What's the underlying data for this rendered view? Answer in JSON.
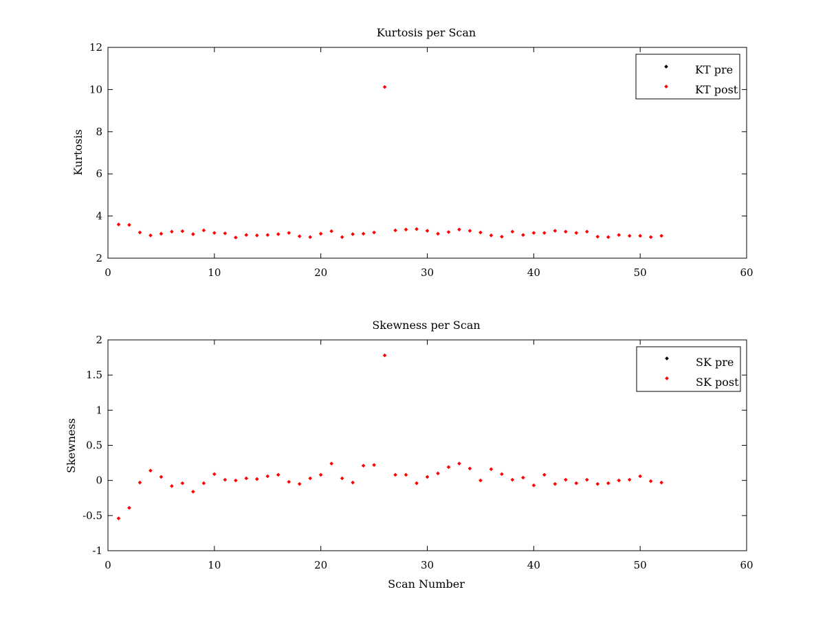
{
  "chart_data": [
    {
      "type": "scatter",
      "title": "Kurtosis per Scan",
      "xlabel": "",
      "ylabel": "Kurtosis",
      "xlim": [
        0,
        60
      ],
      "ylim": [
        2,
        12
      ],
      "xticks": [
        "0",
        "10",
        "20",
        "30",
        "40",
        "50",
        "60"
      ],
      "yticks": [
        "2",
        "4",
        "6",
        "8",
        "10",
        "12"
      ],
      "grid": false,
      "legend_position": "top-right",
      "series": [
        {
          "name": "KT pre",
          "color": "#000000",
          "x": [],
          "y": []
        },
        {
          "name": "KT post",
          "color": "#ff0000",
          "x": [
            1,
            2,
            3,
            4,
            5,
            6,
            7,
            8,
            9,
            10,
            11,
            12,
            13,
            14,
            15,
            16,
            17,
            18,
            19,
            20,
            21,
            22,
            23,
            24,
            25,
            26,
            27,
            28,
            29,
            30,
            31,
            32,
            33,
            34,
            35,
            36,
            37,
            38,
            39,
            40,
            41,
            42,
            43,
            44,
            45,
            46,
            47,
            48,
            49,
            50,
            51,
            52
          ],
          "y": [
            3.6,
            3.58,
            3.22,
            3.08,
            3.16,
            3.26,
            3.28,
            3.14,
            3.32,
            3.2,
            3.18,
            2.98,
            3.1,
            3.08,
            3.1,
            3.14,
            3.2,
            3.04,
            3.0,
            3.16,
            3.28,
            3.0,
            3.14,
            3.16,
            3.22,
            10.12,
            3.32,
            3.36,
            3.38,
            3.3,
            3.16,
            3.24,
            3.36,
            3.3,
            3.22,
            3.08,
            3.02,
            3.26,
            3.1,
            3.2,
            3.2,
            3.3,
            3.26,
            3.2,
            3.26,
            3.02,
            3.0,
            3.1,
            3.06,
            3.06,
            3.0,
            3.06
          ]
        }
      ]
    },
    {
      "type": "scatter",
      "title": "Skewness per Scan",
      "xlabel": "Scan Number",
      "ylabel": "Skewness",
      "xlim": [
        0,
        60
      ],
      "ylim": [
        -1,
        2
      ],
      "xticks": [
        "0",
        "10",
        "20",
        "30",
        "40",
        "50",
        "60"
      ],
      "yticks": [
        "-1",
        "-0.5",
        "0",
        "0.5",
        "1",
        "1.5",
        "2"
      ],
      "grid": false,
      "legend_position": "top-right",
      "series": [
        {
          "name": "SK pre",
          "color": "#000000",
          "x": [],
          "y": []
        },
        {
          "name": "SK post",
          "color": "#ff0000",
          "x": [
            1,
            2,
            3,
            4,
            5,
            6,
            7,
            8,
            9,
            10,
            11,
            12,
            13,
            14,
            15,
            16,
            17,
            18,
            19,
            20,
            21,
            22,
            23,
            24,
            25,
            26,
            27,
            28,
            29,
            30,
            31,
            32,
            33,
            34,
            35,
            36,
            37,
            38,
            39,
            40,
            41,
            42,
            43,
            44,
            45,
            46,
            47,
            48,
            49,
            50,
            51,
            52
          ],
          "y": [
            -0.54,
            -0.39,
            -0.03,
            0.14,
            0.05,
            -0.08,
            -0.04,
            -0.16,
            -0.04,
            0.09,
            0.01,
            0.0,
            0.03,
            0.02,
            0.06,
            0.08,
            -0.02,
            -0.05,
            0.03,
            0.08,
            0.24,
            0.03,
            -0.03,
            0.21,
            0.22,
            1.78,
            0.08,
            0.08,
            -0.04,
            0.05,
            0.1,
            0.19,
            0.24,
            0.17,
            0.0,
            0.16,
            0.09,
            0.01,
            0.04,
            -0.07,
            0.08,
            -0.05,
            0.01,
            -0.04,
            0.01,
            -0.05,
            -0.04,
            0.0,
            0.01,
            0.06,
            -0.01,
            -0.03
          ]
        }
      ]
    }
  ]
}
